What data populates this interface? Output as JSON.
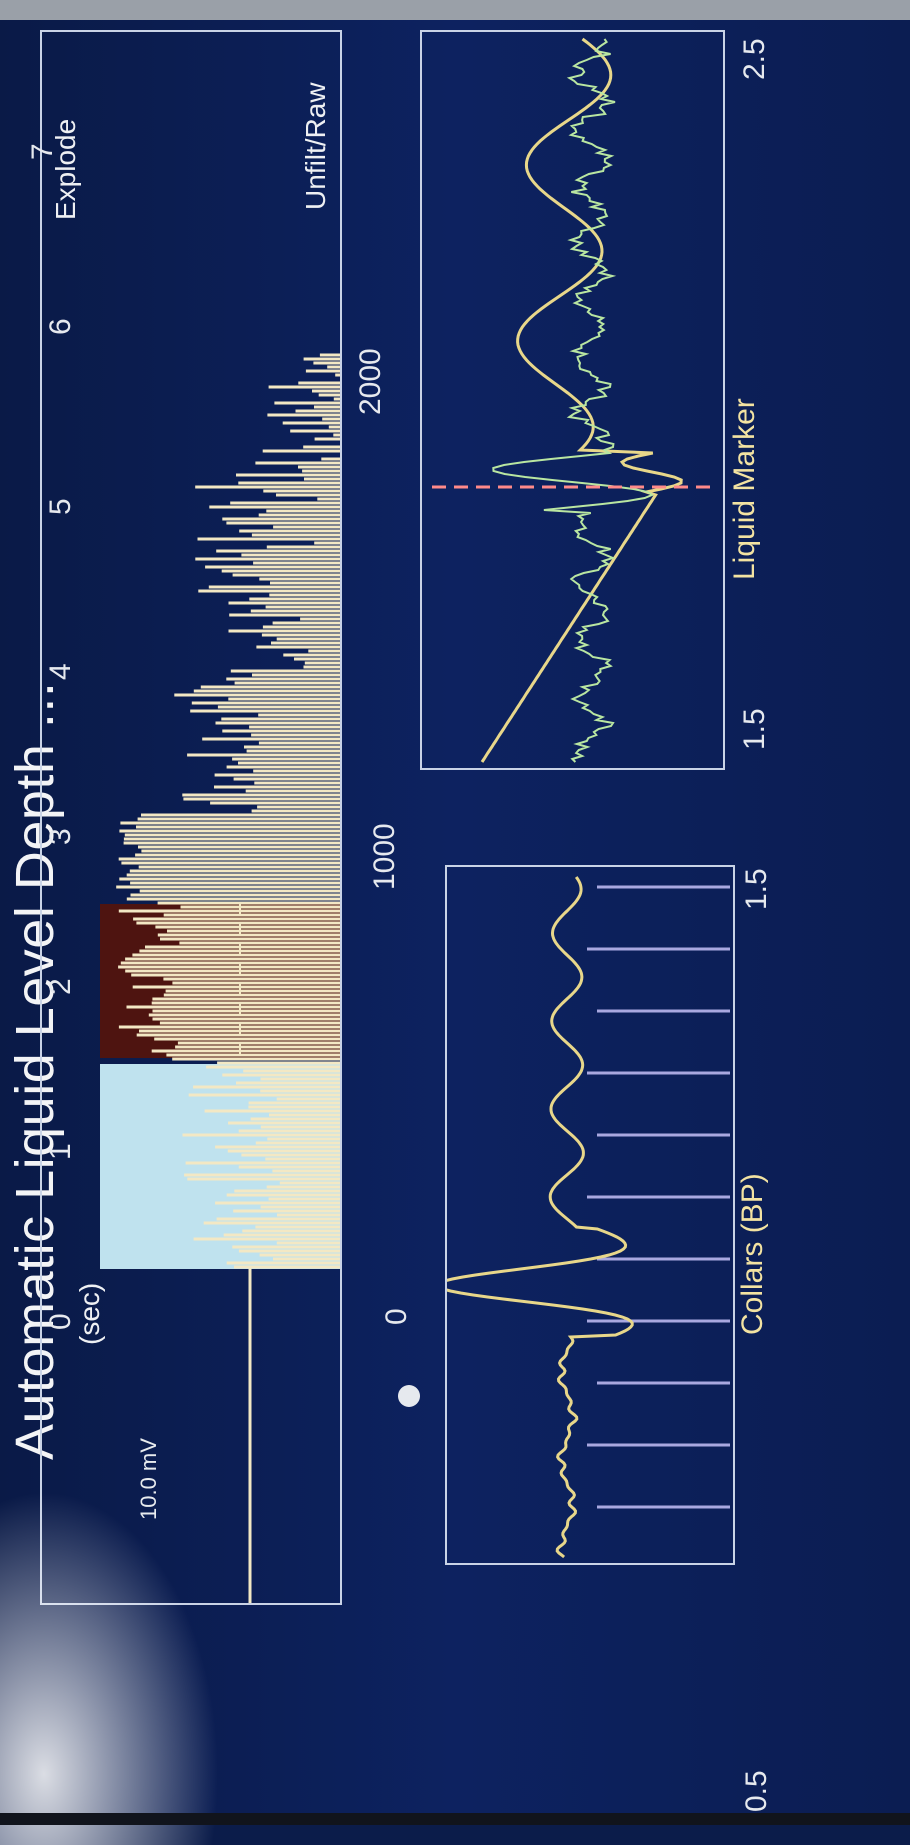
{
  "title": "Automatic Liquid Level Depth ...",
  "main_plot": {
    "time_unit": "(sec)",
    "amplitude": "10.0 mV",
    "corner_icon": "ft-unit-icon",
    "filter_mode": "Unfilt/Raw",
    "explode_label": "Explode",
    "time_ticks": [
      "0",
      "1",
      "2",
      "3",
      "4",
      "5",
      "6",
      "7"
    ],
    "depth_ticks": [
      "0",
      "1000",
      "2000"
    ]
  },
  "collar_panel": {
    "label": "Collars (BP)",
    "axis_ticks": [
      "0.5",
      "1.5"
    ]
  },
  "liquid_panel": {
    "label": "Liquid Marker",
    "axis_ticks": [
      "1.5",
      "2.5"
    ]
  },
  "colors": {
    "background": "#0b1c4a",
    "signal": "#f3e8c4",
    "gold_trace": "#e8d78a",
    "green_trace": "#b9e6a1",
    "collar_line": "#a9a8e0",
    "liquid_marker": "#ff8a8a",
    "zone_light_blue": "#bfe2ee",
    "zone_dark_brown": "#4e1410"
  }
}
